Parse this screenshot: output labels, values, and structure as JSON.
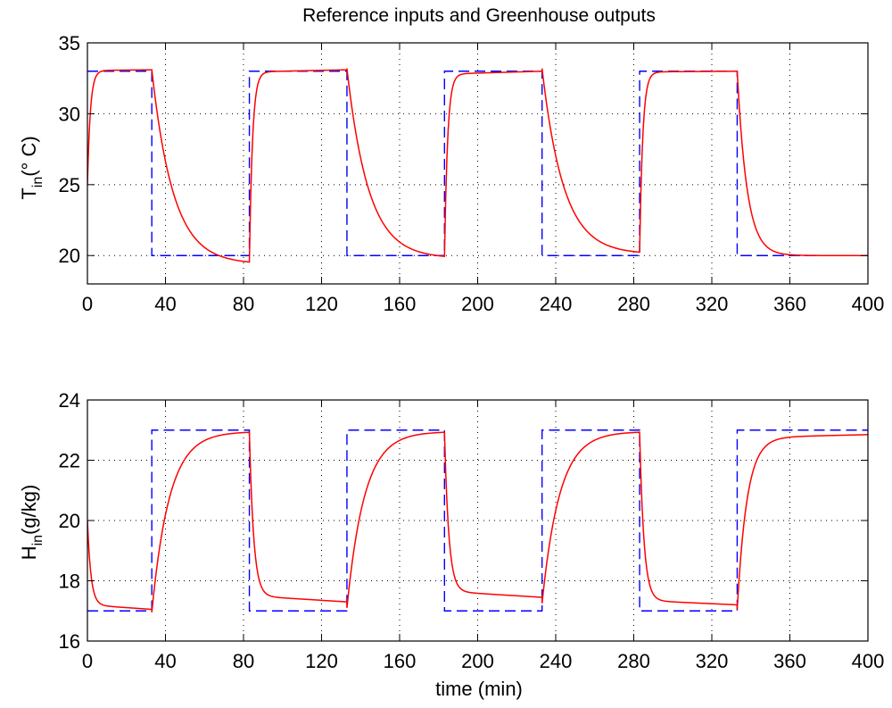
{
  "chart_data": [
    {
      "type": "line",
      "title": "Reference inputs and Greenhouse outputs",
      "ylabel": {
        "main": "T",
        "sub": "in",
        "rest": "(° C)"
      },
      "xlabel": "",
      "xlim": [
        0,
        400
      ],
      "ylim": [
        18,
        35
      ],
      "xticks": [
        0,
        40,
        80,
        120,
        160,
        200,
        240,
        280,
        320,
        360,
        400
      ],
      "yticks": [
        20,
        25,
        30,
        35
      ],
      "grid": true,
      "series": [
        {
          "name": "reference",
          "style": "dashed",
          "color": "#0000ff",
          "x": [
            0,
            33,
            33,
            83,
            83,
            133,
            133,
            183,
            183,
            233,
            233,
            283,
            283,
            333,
            333,
            400
          ],
          "y": [
            33,
            33,
            20,
            20,
            33,
            33,
            20,
            20,
            33,
            33,
            20,
            20,
            33,
            33,
            20,
            20
          ]
        },
        {
          "name": "output",
          "style": "solid",
          "color": "#ff0000",
          "segments": [
            {
              "t0": 0,
              "t1": 33,
              "start": 25,
              "end": 33.1,
              "tau": 1.5,
              "drift": 0.05
            },
            {
              "t0": 33,
              "t1": 83,
              "start": 33.1,
              "end": 19.4,
              "tau": 11,
              "drift": 0
            },
            {
              "t0": 83,
              "t1": 133,
              "start": 19.6,
              "end": 33.1,
              "tau": 1.6,
              "drift": 0.15
            },
            {
              "t0": 133,
              "t1": 183,
              "start": 33.2,
              "end": 19.8,
              "tau": 11,
              "drift": 0
            },
            {
              "t0": 183,
              "t1": 233,
              "start": 20.0,
              "end": 33.0,
              "tau": 1.6,
              "drift": 0.2
            },
            {
              "t0": 233,
              "t1": 283,
              "start": 33.2,
              "end": 20.1,
              "tau": 11,
              "drift": 0
            },
            {
              "t0": 283,
              "t1": 333,
              "start": 20.3,
              "end": 33.0,
              "tau": 1.6,
              "drift": 0.05
            },
            {
              "t0": 333,
              "t1": 400,
              "start": 33.0,
              "end": 20.0,
              "tau": 5,
              "drift": 0
            }
          ]
        }
      ]
    },
    {
      "type": "line",
      "title": "",
      "ylabel": {
        "main": "H",
        "sub": "in",
        "rest": "(g/kg)"
      },
      "xlabel": "time (min)",
      "xlim": [
        0,
        400
      ],
      "ylim": [
        16,
        24
      ],
      "xticks": [
        0,
        40,
        80,
        120,
        160,
        200,
        240,
        280,
        320,
        360,
        400
      ],
      "yticks": [
        16,
        18,
        20,
        22,
        24
      ],
      "grid": true,
      "series": [
        {
          "name": "reference",
          "style": "dashed",
          "color": "#0000ff",
          "x": [
            0,
            33,
            33,
            83,
            83,
            133,
            133,
            183,
            183,
            233,
            233,
            283,
            283,
            333,
            333,
            400
          ],
          "y": [
            17,
            17,
            23,
            23,
            17,
            17,
            23,
            23,
            17,
            17,
            23,
            23,
            17,
            17,
            23,
            23
          ]
        },
        {
          "name": "output",
          "style": "solid",
          "color": "#ff0000",
          "segments": [
            {
              "t0": 0,
              "t1": 33,
              "start": 20.0,
              "end": 17.05,
              "tau": 1.8,
              "drift": -0.15
            },
            {
              "t0": 33,
              "t1": 83,
              "start": 16.95,
              "end": 22.95,
              "tau": 9,
              "drift": 0
            },
            {
              "t0": 83,
              "t1": 133,
              "start": 22.9,
              "end": 17.3,
              "tau": 2.2,
              "drift": -0.2
            },
            {
              "t0": 133,
              "t1": 183,
              "start": 17.1,
              "end": 22.95,
              "tau": 9,
              "drift": 0
            },
            {
              "t0": 183,
              "t1": 233,
              "start": 22.9,
              "end": 17.45,
              "tau": 2.2,
              "drift": -0.2
            },
            {
              "t0": 233,
              "t1": 283,
              "start": 17.25,
              "end": 22.95,
              "tau": 9,
              "drift": 0
            },
            {
              "t0": 283,
              "t1": 333,
              "start": 22.9,
              "end": 17.2,
              "tau": 2.2,
              "drift": -0.15
            },
            {
              "t0": 333,
              "t1": 400,
              "start": 17.05,
              "end": 22.85,
              "tau": 5,
              "drift": 0.1
            }
          ]
        }
      ]
    }
  ]
}
